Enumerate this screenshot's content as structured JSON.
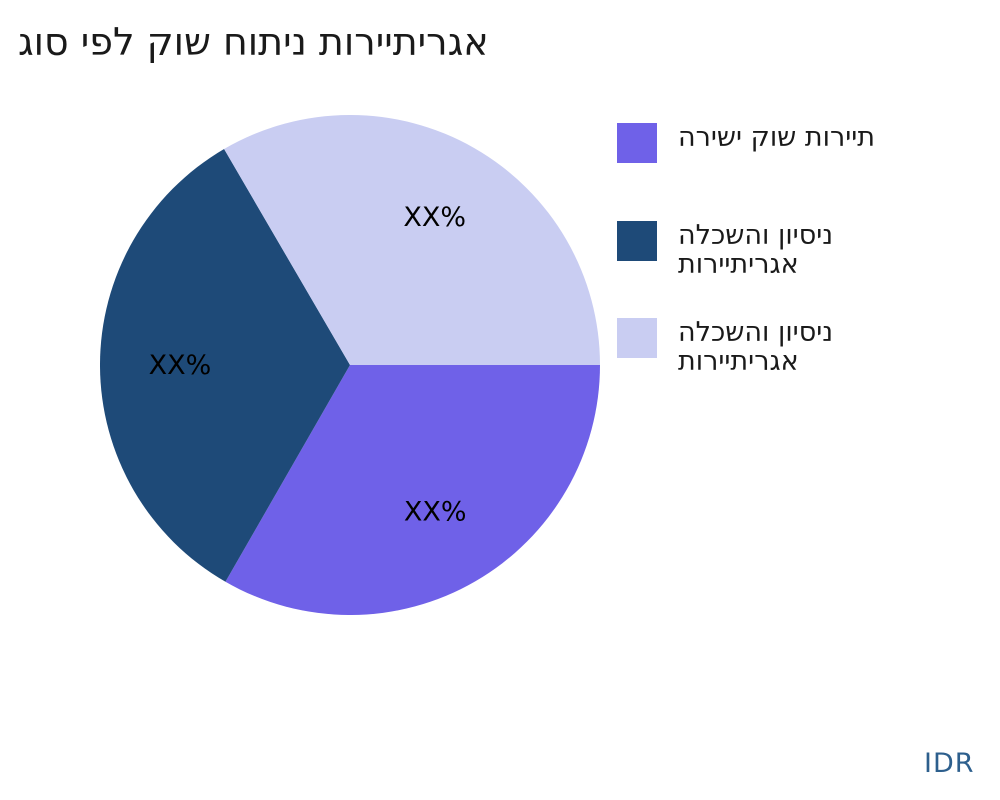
{
  "watermark": {
    "text": "IDR"
  },
  "colors": {
    "background": "#FFFFFF",
    "title_text": "#1A1A1A",
    "legend_text": "#1A1A1A",
    "slice_label_text": "#000000",
    "watermark_text": "#2D5F8D"
  },
  "chart_data": {
    "type": "pie",
    "title": "אגריתיירות ניתוח שוק לפי סוג",
    "legend_position": "right",
    "start_angle_deg": 0,
    "direction": "clockwise",
    "label_distance_frac": 0.68,
    "slices": [
      {
        "name": "תיירות שוק ישירה",
        "legend_lines": [
          "תיירות שוק ישירה"
        ],
        "value_pct": 33.3,
        "pct_label": "XX%",
        "color": "#6F61E8"
      },
      {
        "name": "ניסיון והשכלה אגריתיירות",
        "legend_lines": [
          "ניסיון והשכלה",
          "אגריתיירות"
        ],
        "value_pct": 33.3,
        "pct_label": "XX%",
        "color": "#1E4A78"
      },
      {
        "name": "ניסיון והשכלה אגריתיירות",
        "legend_lines": [
          "ניסיון והשכלה",
          "אגריתיירות"
        ],
        "value_pct": 33.4,
        "pct_label": "XX%",
        "color": "#C9CDF2"
      }
    ]
  }
}
